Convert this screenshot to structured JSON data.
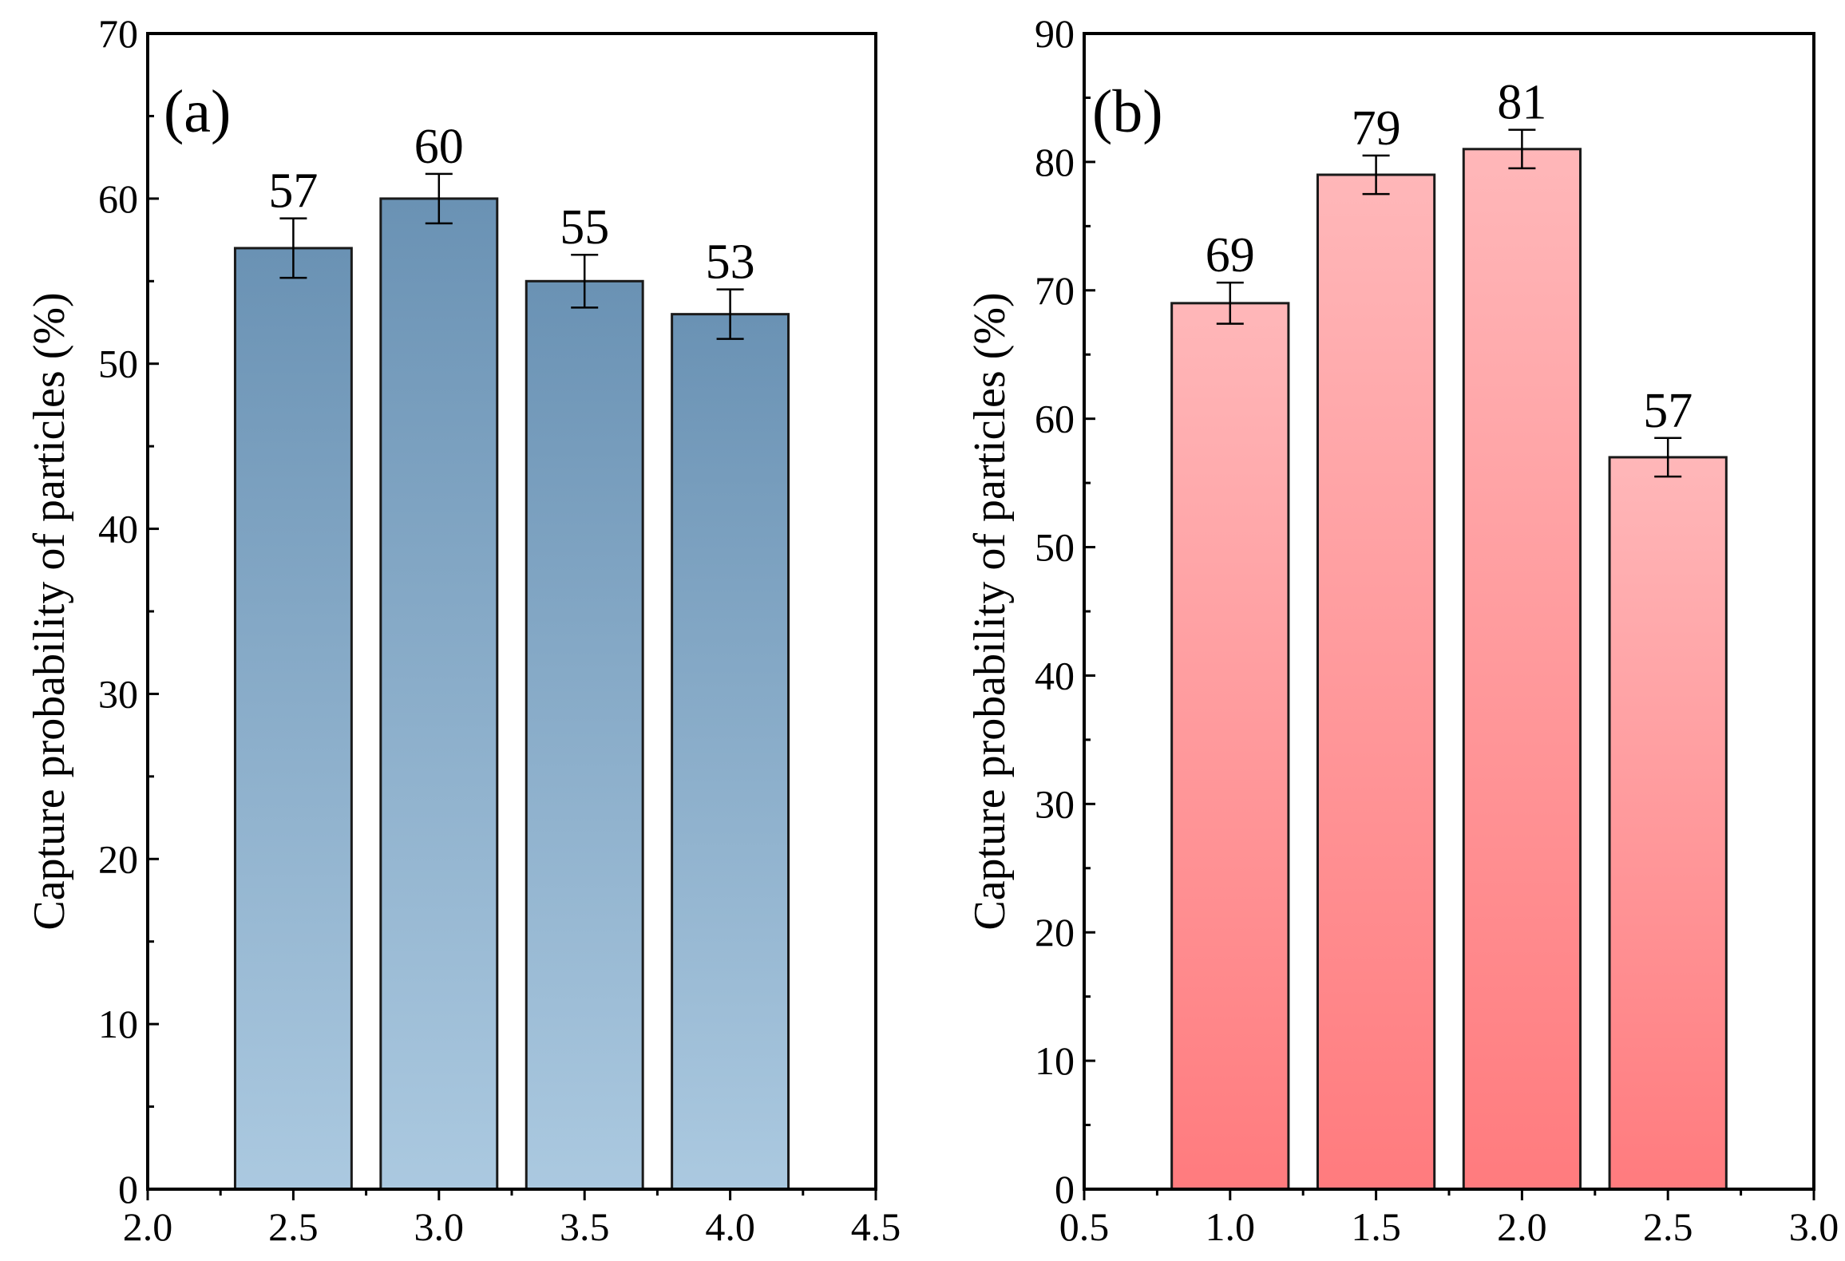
{
  "chart_data": [
    {
      "type": "bar",
      "panel_label": "(a)",
      "ylabel": "Capture probability of particles (%)",
      "xlabel": "",
      "x": [
        2.5,
        3.0,
        3.5,
        4.0
      ],
      "values": [
        57,
        60,
        55,
        53
      ],
      "error": [
        1.8,
        1.5,
        1.6,
        1.5
      ],
      "value_labels": [
        "57",
        "60",
        "55",
        "53"
      ],
      "xlim": [
        2.0,
        4.5
      ],
      "ylim": [
        0,
        70
      ],
      "bar_width": 0.4,
      "xticks": [
        2.0,
        2.5,
        3.0,
        3.5,
        4.0,
        4.5
      ],
      "xtick_labels": [
        "2.0",
        "2.5",
        "3.0",
        "3.5",
        "4.0",
        "4.5"
      ],
      "yticks": [
        0,
        10,
        20,
        30,
        40,
        50,
        60,
        70
      ],
      "ytick_labels": [
        "0",
        "10",
        "20",
        "30",
        "40",
        "50",
        "60",
        "70"
      ],
      "colors": {
        "top": "#6a92b4",
        "bottom": "#abc9e0"
      },
      "grid": false
    },
    {
      "type": "bar",
      "panel_label": "(b)",
      "ylabel": "Capture probability of particles (%)",
      "xlabel": "",
      "x": [
        1.0,
        1.5,
        2.0,
        2.5
      ],
      "values": [
        69,
        79,
        81,
        57
      ],
      "error": [
        1.6,
        1.5,
        1.5,
        1.5
      ],
      "value_labels": [
        "69",
        "79",
        "81",
        "57"
      ],
      "xlim": [
        0.5,
        3.0
      ],
      "ylim": [
        0,
        90
      ],
      "bar_width": 0.4,
      "xticks": [
        0.5,
        1.0,
        1.5,
        2.0,
        2.5,
        3.0
      ],
      "xtick_labels": [
        "0.5",
        "1.0",
        "1.5",
        "2.0",
        "2.5",
        "3.0"
      ],
      "yticks": [
        0,
        10,
        20,
        30,
        40,
        50,
        60,
        70,
        80,
        90
      ],
      "ytick_labels": [
        "0",
        "10",
        "20",
        "30",
        "40",
        "50",
        "60",
        "70",
        "80",
        "90"
      ],
      "colors": {
        "top": "#ffb7b9",
        "bottom": "#ff7b7e"
      },
      "grid": false
    }
  ]
}
